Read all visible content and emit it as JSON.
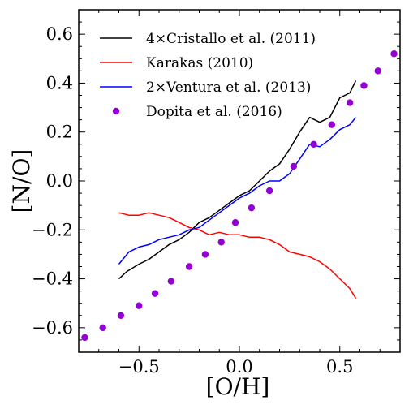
{
  "chart_data": {
    "type": "line",
    "title": "",
    "xlabel": "[O/H]",
    "ylabel": "[N/O]",
    "xlim": [
      -0.8,
      0.8
    ],
    "ylim": [
      -0.7,
      0.7
    ],
    "x_ticks": [
      {
        "value": -0.5,
        "label": "−0.5"
      },
      {
        "value": 0.0,
        "label": "0.0"
      },
      {
        "value": 0.5,
        "label": "0.5"
      }
    ],
    "y_ticks": [
      {
        "value": -0.6,
        "label": "−0.6"
      },
      {
        "value": -0.4,
        "label": "−0.4"
      },
      {
        "value": -0.2,
        "label": "−0.2"
      },
      {
        "value": 0.0,
        "label": "0.0"
      },
      {
        "value": 0.2,
        "label": "0.2"
      },
      {
        "value": 0.4,
        "label": "0.4"
      },
      {
        "value": 0.6,
        "label": "0.6"
      }
    ],
    "grid": false,
    "legend_position": "top-left",
    "series": [
      {
        "name": "4×Cristallo et al. (2011)",
        "kind": "line",
        "color": "#000000",
        "x": [
          -0.6,
          -0.56,
          -0.5,
          -0.45,
          -0.4,
          -0.35,
          -0.3,
          -0.25,
          -0.2,
          -0.15,
          -0.1,
          -0.05,
          0.0,
          0.05,
          0.1,
          0.15,
          0.2,
          0.25,
          0.3,
          0.35,
          0.4,
          0.45,
          0.5,
          0.55,
          0.58
        ],
        "y": [
          -0.4,
          -0.37,
          -0.34,
          -0.32,
          -0.29,
          -0.26,
          -0.24,
          -0.21,
          -0.17,
          -0.15,
          -0.12,
          -0.09,
          -0.06,
          -0.04,
          0.0,
          0.04,
          0.07,
          0.13,
          0.2,
          0.26,
          0.24,
          0.26,
          0.34,
          0.36,
          0.41
        ]
      },
      {
        "name": "Karakas (2010)",
        "kind": "line",
        "color": "#ff0000",
        "x": [
          -0.6,
          -0.55,
          -0.5,
          -0.45,
          -0.4,
          -0.35,
          -0.3,
          -0.25,
          -0.2,
          -0.15,
          -0.1,
          -0.05,
          0.0,
          0.05,
          0.1,
          0.15,
          0.2,
          0.25,
          0.3,
          0.35,
          0.4,
          0.45,
          0.5,
          0.55,
          0.58
        ],
        "y": [
          -0.13,
          -0.14,
          -0.14,
          -0.13,
          -0.14,
          -0.15,
          -0.17,
          -0.19,
          -0.2,
          -0.22,
          -0.21,
          -0.22,
          -0.22,
          -0.23,
          -0.23,
          -0.24,
          -0.26,
          -0.29,
          -0.3,
          -0.31,
          -0.33,
          -0.36,
          -0.4,
          -0.44,
          -0.48
        ]
      },
      {
        "name": "2×Ventura et al. (2013)",
        "kind": "line",
        "color": "#0000ff",
        "x": [
          -0.6,
          -0.55,
          -0.5,
          -0.45,
          -0.4,
          -0.35,
          -0.3,
          -0.25,
          -0.2,
          -0.15,
          -0.1,
          -0.05,
          0.0,
          0.05,
          0.1,
          0.15,
          0.2,
          0.25,
          0.3,
          0.35,
          0.4,
          0.45,
          0.5,
          0.55,
          0.58
        ],
        "y": [
          -0.34,
          -0.29,
          -0.27,
          -0.26,
          -0.24,
          -0.23,
          -0.22,
          -0.2,
          -0.19,
          -0.16,
          -0.13,
          -0.1,
          -0.07,
          -0.05,
          -0.02,
          0.0,
          0.0,
          0.03,
          0.09,
          0.15,
          0.14,
          0.17,
          0.21,
          0.23,
          0.26
        ]
      },
      {
        "name": "Dopita et al. (2016)",
        "kind": "scatter",
        "color": "#9400d3",
        "x": [
          -0.77,
          -0.68,
          -0.59,
          -0.5,
          -0.42,
          -0.34,
          -0.25,
          -0.17,
          -0.09,
          -0.02,
          0.06,
          0.15,
          0.27,
          0.37,
          0.46,
          0.55,
          0.62,
          0.69,
          0.77
        ],
        "y": [
          -0.64,
          -0.6,
          -0.55,
          -0.51,
          -0.46,
          -0.41,
          -0.35,
          -0.3,
          -0.25,
          -0.17,
          -0.11,
          -0.04,
          0.06,
          0.15,
          0.23,
          0.32,
          0.39,
          0.45,
          0.52
        ]
      }
    ]
  }
}
